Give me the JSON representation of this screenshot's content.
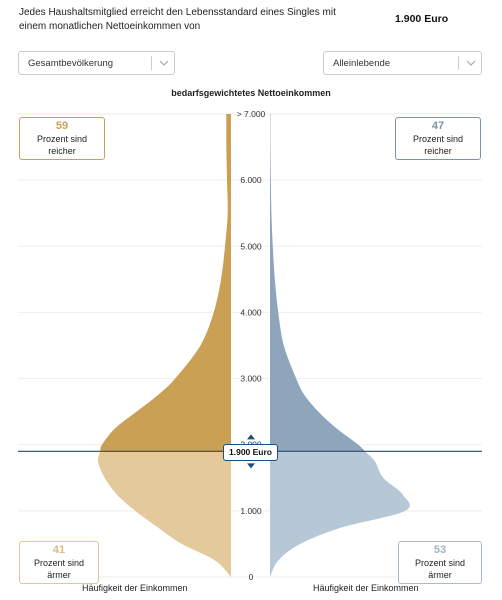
{
  "header": {
    "intro_text": "Jedes Haushaltsmitglied erreicht den Lebensstandard eines Singles mit einem monatlichen Nettoeinkommen von",
    "income_value": "1.900 Euro"
  },
  "filters": {
    "left_select": "Gesamtbevölkerung",
    "right_select": "Alleinlebende"
  },
  "chart_data": {
    "type": "area",
    "title": "bedarfsgewichtetes Nettoeinkommen",
    "ytick_labels": [
      "0",
      "1.000",
      "2.000",
      "3.000",
      "4.000",
      "5.000",
      "6.000",
      "> 7.000"
    ],
    "ylim": [
      0,
      7000
    ],
    "marker_value": 1900,
    "marker_label": "1.900 Euro",
    "xlabel_left": "Häufigkeit der Einkommen",
    "xlabel_right": "Häufigkeit der Einkommen",
    "colors": {
      "left_above": "#c9a054",
      "left_below": "#e3c99b",
      "right_above": "#8fa5bb",
      "right_below": "#b6c7d6",
      "marker_line": "#1e4e79"
    },
    "series": [
      {
        "side": "left",
        "income": [
          0,
          250,
          500,
          750,
          1000,
          1250,
          1500,
          1750,
          2000,
          2250,
          2500,
          2750,
          3000,
          3500,
          4000,
          4500,
          5000,
          5500,
          6000,
          6500,
          7000
        ],
        "density": [
          0.0,
          0.12,
          0.37,
          0.55,
          0.72,
          0.86,
          0.95,
          1.0,
          0.97,
          0.87,
          0.71,
          0.55,
          0.42,
          0.23,
          0.13,
          0.075,
          0.045,
          0.025,
          0.03,
          0.035,
          0.035
        ]
      },
      {
        "side": "right",
        "income": [
          0,
          250,
          500,
          750,
          1000,
          1250,
          1500,
          1750,
          2000,
          2250,
          2500,
          2750,
          3000,
          3500,
          4000,
          4500,
          5000,
          5500,
          6000,
          6500,
          7000
        ],
        "density": [
          0.0,
          0.06,
          0.22,
          0.52,
          0.98,
          0.96,
          0.82,
          0.76,
          0.64,
          0.48,
          0.35,
          0.25,
          0.19,
          0.1,
          0.06,
          0.035,
          0.02,
          0.01,
          0.006,
          0.003,
          0.003
        ]
      }
    ]
  },
  "stats": {
    "left_richer": {
      "value": "59",
      "label": "Prozent sind reicher"
    },
    "right_richer": {
      "value": "47",
      "label": "Prozent sind reicher"
    },
    "left_poorer": {
      "value": "41",
      "label": "Prozent sind ärmer"
    },
    "right_poorer": {
      "value": "53",
      "label": "Prozent sind ärmer"
    }
  }
}
